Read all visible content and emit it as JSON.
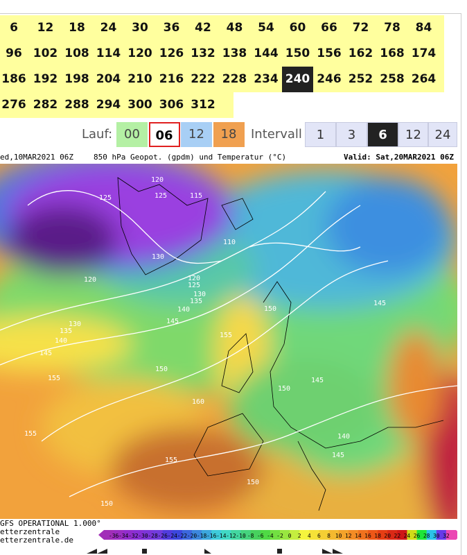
{
  "forecast_hours": [
    [
      6,
      12,
      18,
      24,
      30,
      36,
      42,
      48,
      54,
      60,
      66,
      72,
      78,
      84
    ],
    [
      96,
      102,
      108,
      114,
      120,
      126,
      132,
      138,
      144,
      150,
      156,
      162,
      168,
      174
    ],
    [
      186,
      192,
      198,
      204,
      210,
      216,
      222,
      228,
      234,
      240,
      246,
      252,
      258,
      264
    ],
    [
      276,
      282,
      288,
      294,
      300,
      306,
      312
    ]
  ],
  "selected_hour": 240,
  "run": {
    "label": "Lauf:",
    "options": [
      "00",
      "06",
      "12",
      "18"
    ],
    "selected": "06"
  },
  "interval": {
    "label": "Intervall",
    "options": [
      "1",
      "3",
      "6",
      "12",
      "24"
    ],
    "selected": "6"
  },
  "map": {
    "run_info": "ed,10MAR2021 06Z",
    "title": "850 hPa Geopot. (gpdm) und Temperatur (°C)",
    "valid": "Valid: Sat,20MAR2021 06Z",
    "contour_labels": [
      125,
      120,
      125,
      115,
      130,
      120,
      125,
      130,
      135,
      140,
      145,
      150,
      155,
      150,
      160,
      145,
      150,
      140,
      145,
      155,
      155,
      155,
      150,
      150,
      135,
      140,
      130,
      145,
      145,
      110,
      120
    ],
    "model": "GFS OPERATIONAL 1.000°",
    "source": "etterzentrale",
    "url": "etterzentrale.de",
    "scale": [
      -36,
      -34,
      -32,
      -30,
      -28,
      -26,
      -24,
      -22,
      -20,
      -18,
      -16,
      -14,
      -12,
      -10,
      -8,
      -6,
      -4,
      -2,
      0,
      2,
      4,
      6,
      8,
      10,
      12,
      14,
      16,
      18,
      20,
      22,
      24,
      26,
      28,
      30,
      32
    ]
  }
}
